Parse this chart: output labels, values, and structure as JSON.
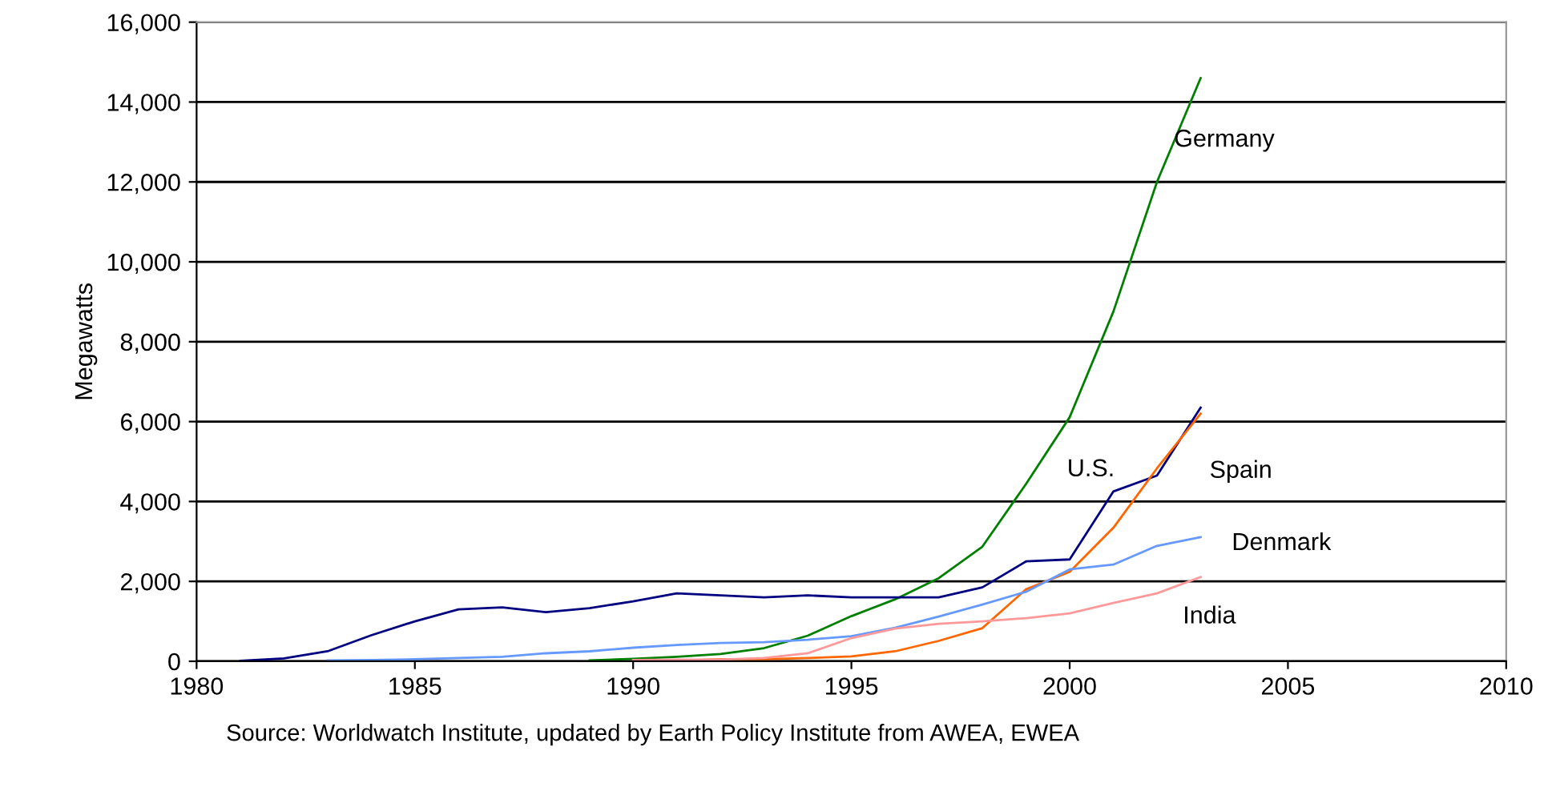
{
  "chart_data": {
    "type": "line",
    "ylabel": "Megawatts",
    "x": [
      1981,
      1982,
      1983,
      1984,
      1985,
      1986,
      1987,
      1988,
      1989,
      1990,
      1991,
      1992,
      1993,
      1994,
      1995,
      1996,
      1997,
      1998,
      1999,
      2000,
      2001,
      2002,
      2003
    ],
    "series": [
      {
        "name": "Germany",
        "color": "#008000",
        "values": [
          null,
          null,
          null,
          null,
          null,
          null,
          null,
          null,
          20,
          60,
          110,
          180,
          330,
          640,
          1130,
          1550,
          2080,
          2870,
          4440,
          6110,
          8750,
          12000,
          14600
        ]
      },
      {
        "name": "U.S.",
        "color": "#000080",
        "values": [
          10,
          70,
          250,
          650,
          1000,
          1300,
          1350,
          1230,
          1330,
          1500,
          1700,
          1650,
          1600,
          1650,
          1600,
          1600,
          1600,
          1850,
          2500,
          2550,
          4250,
          4650,
          6350
        ]
      },
      {
        "name": "Spain",
        "color": "#ff6600",
        "values": [
          null,
          null,
          null,
          null,
          null,
          null,
          null,
          null,
          null,
          10,
          10,
          50,
          50,
          80,
          120,
          250,
          510,
          830,
          1800,
          2240,
          3340,
          4830,
          6200
        ]
      },
      {
        "name": "Denmark",
        "color": "#6699ff",
        "values": [
          null,
          null,
          20,
          30,
          50,
          80,
          110,
          200,
          250,
          340,
          410,
          460,
          480,
          540,
          630,
          840,
          1120,
          1420,
          1740,
          2300,
          2420,
          2890,
          3110
        ]
      },
      {
        "name": "India",
        "color": "#ff9999",
        "values": [
          null,
          null,
          null,
          null,
          null,
          null,
          null,
          null,
          null,
          30,
          40,
          40,
          80,
          200,
          580,
          820,
          940,
          1000,
          1080,
          1200,
          1460,
          1700,
          2110
        ]
      }
    ],
    "xlim": [
      1980,
      2010
    ],
    "xticks": [
      1980,
      1985,
      1990,
      1995,
      2000,
      2005,
      2010
    ],
    "ylim": [
      0,
      16000
    ],
    "yticks": [
      {
        "value": 0,
        "label": "0"
      },
      {
        "value": 2000,
        "label": "2,000"
      },
      {
        "value": 4000,
        "label": "4,000"
      },
      {
        "value": 6000,
        "label": "6,000"
      },
      {
        "value": 8000,
        "label": "8,000"
      },
      {
        "value": 10000,
        "label": "10,000"
      },
      {
        "value": 12000,
        "label": "12,000"
      },
      {
        "value": 14000,
        "label": "14,000"
      },
      {
        "value": 16000,
        "label": "16,000"
      }
    ],
    "grid": "y",
    "legend": false,
    "marker": "none",
    "line_style": "solid",
    "annotations": [
      "Source: Worldwatch Institute, updated by Earth Policy Institute from AWEA, EWEA"
    ]
  }
}
